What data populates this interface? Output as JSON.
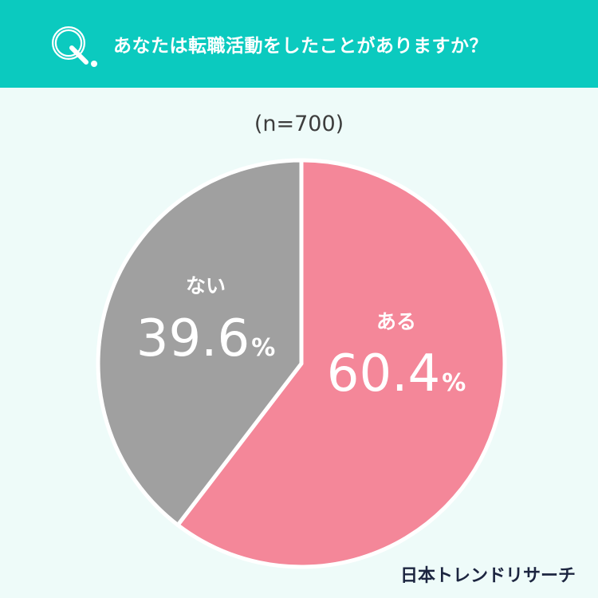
{
  "header": {
    "question_mark": "Q.",
    "question": "あなたは転職活動をしたことがありますか？"
  },
  "sample": "(n=700)",
  "brand": "日本トレンドリサーチ",
  "colors": {
    "header_bg": "#0bcabf",
    "page_bg": "#eefbf9",
    "aru": "#f48799",
    "nai": "#a0a0a0"
  },
  "chart_data": {
    "type": "pie",
    "title": "あなたは転職活動をしたことがありますか？",
    "n": "(n=700)",
    "slices": [
      {
        "label": "ある",
        "value": 60.4,
        "display": "60.4",
        "unit": "%",
        "color": "#f48799"
      },
      {
        "label": "ない",
        "value": 39.6,
        "display": "39.6",
        "unit": "%",
        "color": "#a0a0a0"
      }
    ]
  }
}
